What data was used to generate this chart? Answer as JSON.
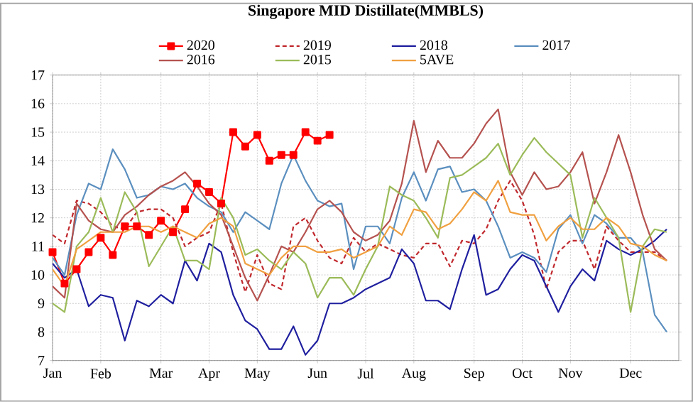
{
  "chart_data": {
    "type": "line",
    "title": "Singapore MID Distillate(MMBLS)",
    "categories": [
      "Jan",
      null,
      null,
      null,
      "Feb",
      null,
      null,
      null,
      null,
      "Mar",
      null,
      null,
      null,
      "Apr",
      null,
      null,
      null,
      "May",
      null,
      null,
      null,
      null,
      "Jun",
      null,
      null,
      null,
      "Jul",
      null,
      null,
      null,
      "Aug",
      null,
      null,
      null,
      null,
      "Sep",
      null,
      null,
      null,
      "Oct",
      null,
      null,
      null,
      "Nov",
      null,
      null,
      null,
      null,
      "Dec",
      null,
      null,
      null
    ],
    "ylim": [
      7,
      17
    ],
    "yticks": [
      7,
      8,
      9,
      10,
      11,
      12,
      13,
      14,
      15,
      16,
      17
    ],
    "grid": true,
    "legend": "top",
    "series": [
      {
        "name": "2020",
        "color": "#ff0000",
        "marker": "square",
        "line_style": "solid",
        "values": [
          10.8,
          9.7,
          10.2,
          10.8,
          11.3,
          10.7,
          11.7,
          11.7,
          11.4,
          11.9,
          11.5,
          12.3,
          13.2,
          12.9,
          12.5,
          15.0,
          14.5,
          14.9,
          14.0,
          14.2,
          14.2,
          15.0,
          14.7,
          14.9,
          null,
          null,
          null,
          null,
          null,
          null,
          null,
          null,
          null,
          null,
          null,
          null,
          null,
          null,
          null,
          null,
          null,
          null,
          null,
          null,
          null,
          null,
          null,
          null,
          null,
          null,
          null,
          null
        ]
      },
      {
        "name": "2019",
        "color": "#c0282d",
        "marker": "none",
        "line_style": "dashed",
        "values": [
          11.4,
          11.1,
          12.6,
          12.5,
          12.2,
          11.7,
          11.6,
          12.2,
          12.3,
          12.3,
          12.0,
          11.0,
          11.3,
          11.5,
          12.5,
          10.8,
          9.4,
          10.7,
          9.7,
          9.5,
          11.7,
          12.0,
          11.2,
          10.6,
          10.4,
          11.3,
          10.8,
          11.1,
          10.9,
          10.7,
          10.6,
          11.1,
          11.1,
          10.3,
          11.2,
          11.1,
          11.6,
          12.6,
          13.3,
          12.6,
          11.4,
          9.5,
          10.8,
          11.2,
          11.2,
          10.2,
          11.7,
          11.2,
          10.8,
          10.8,
          10.8,
          10.5
        ]
      },
      {
        "name": "2018",
        "color": "#1f1f9f",
        "marker": "none",
        "line_style": "solid",
        "values": [
          10.4,
          9.9,
          10.2,
          8.9,
          9.3,
          9.2,
          7.7,
          9.1,
          8.9,
          9.3,
          9.0,
          10.5,
          9.8,
          11.1,
          10.8,
          9.3,
          8.4,
          8.1,
          7.4,
          7.4,
          8.2,
          7.2,
          7.7,
          9.0,
          9.0,
          9.2,
          9.5,
          9.7,
          9.9,
          10.9,
          10.4,
          9.1,
          9.1,
          8.8,
          10.2,
          11.4,
          9.3,
          9.5,
          10.2,
          10.7,
          10.5,
          9.6,
          8.7,
          9.6,
          10.2,
          9.8,
          11.2,
          10.9,
          10.7,
          10.9,
          11.2,
          11.6
        ]
      },
      {
        "name": "2017",
        "color": "#5b8fbf",
        "marker": "none",
        "line_style": "solid",
        "values": [
          10.6,
          10.0,
          12.1,
          13.2,
          13.0,
          14.4,
          13.7,
          12.7,
          12.8,
          13.1,
          13.0,
          13.2,
          12.7,
          12.4,
          12.2,
          11.5,
          12.2,
          11.9,
          11.6,
          13.2,
          14.2,
          13.3,
          12.6,
          12.4,
          12.5,
          10.2,
          11.7,
          11.7,
          11.1,
          12.7,
          13.6,
          12.6,
          13.7,
          13.8,
          12.9,
          13.0,
          12.6,
          11.7,
          10.6,
          10.8,
          10.6,
          10.1,
          11.6,
          12.1,
          11.1,
          12.1,
          11.8,
          11.3,
          11.3,
          10.8,
          8.6,
          8.0
        ]
      },
      {
        "name": "2016",
        "color": "#b5524f",
        "marker": "none",
        "line_style": "solid",
        "values": [
          9.6,
          9.2,
          12.5,
          11.9,
          11.6,
          11.5,
          12.1,
          12.4,
          12.8,
          13.1,
          13.3,
          13.6,
          13.1,
          12.5,
          12.1,
          11.0,
          9.9,
          9.1,
          10.0,
          11.0,
          10.8,
          11.5,
          12.3,
          12.6,
          12.2,
          11.5,
          11.2,
          11.4,
          11.9,
          13.2,
          15.4,
          13.6,
          14.7,
          14.1,
          14.1,
          14.6,
          15.3,
          15.8,
          13.6,
          12.8,
          13.6,
          13.0,
          13.1,
          13.6,
          14.3,
          12.5,
          13.6,
          14.9,
          13.6,
          12.1,
          10.9,
          10.5
        ]
      },
      {
        "name": "2015",
        "color": "#9bbb59",
        "marker": "none",
        "line_style": "solid",
        "values": [
          9.0,
          8.7,
          11.0,
          11.5,
          12.7,
          11.5,
          12.9,
          12.2,
          10.3,
          11.0,
          11.7,
          10.5,
          10.5,
          10.2,
          12.7,
          12.0,
          10.7,
          10.9,
          10.5,
          10.2,
          10.8,
          10.4,
          9.2,
          9.9,
          9.9,
          9.3,
          10.2,
          11.0,
          13.1,
          12.8,
          12.6,
          12.0,
          11.3,
          13.4,
          13.5,
          13.8,
          14.1,
          14.6,
          13.5,
          14.2,
          14.8,
          14.3,
          13.9,
          13.5,
          11.3,
          12.7,
          12.0,
          11.3,
          8.7,
          11.0,
          11.6,
          11.5
        ]
      },
      {
        "name": "5AVE",
        "color": "#f0a040",
        "marker": "none",
        "line_style": "solid",
        "values": [
          10.2,
          9.6,
          10.9,
          11.2,
          11.5,
          11.5,
          11.5,
          11.7,
          11.7,
          11.5,
          11.7,
          11.5,
          11.3,
          11.8,
          12.0,
          11.7,
          10.4,
          10.2,
          10.0,
          10.6,
          11.0,
          11.0,
          10.8,
          10.8,
          10.9,
          10.6,
          10.8,
          11.0,
          11.7,
          11.4,
          12.3,
          12.2,
          11.6,
          11.8,
          12.3,
          12.9,
          12.6,
          13.3,
          12.2,
          12.1,
          12.1,
          11.2,
          11.7,
          12.0,
          11.6,
          11.6,
          12.0,
          11.7,
          11.1,
          11.0,
          10.7,
          10.5
        ]
      }
    ]
  }
}
